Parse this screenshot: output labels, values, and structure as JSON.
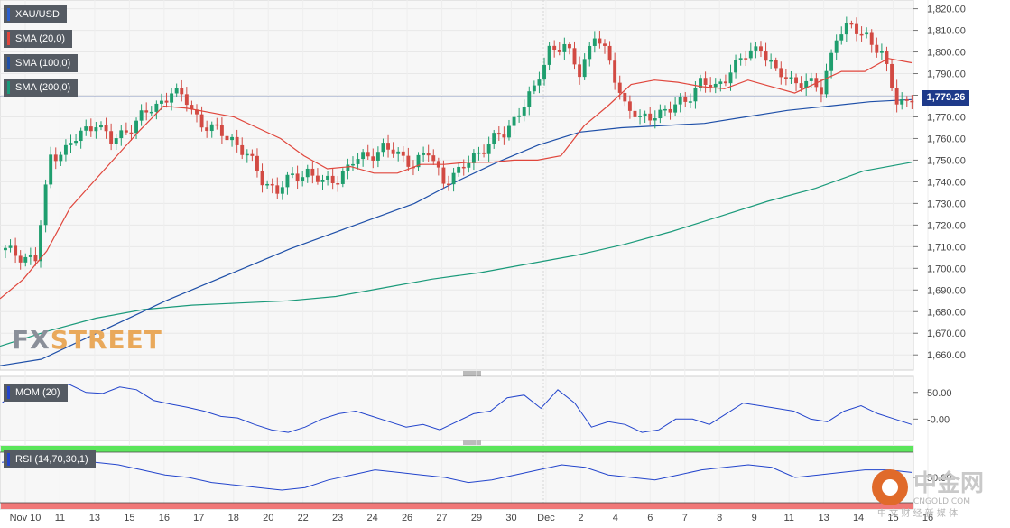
{
  "legend": {
    "symbol": "XAU/USD",
    "sma20": "SMA (20,0)",
    "sma100": "SMA (100,0)",
    "sma200": "SMA (200,0)",
    "mom": "MOM (20)",
    "rsi": "RSI (14,70,30,1)"
  },
  "colors": {
    "up": "#1f9e6e",
    "down": "#d24a43",
    "sma20": "#e0463c",
    "sma100": "#1e4fa8",
    "sma200": "#1a9a7a",
    "mom_line": "#2244cc",
    "rsi_line": "#2244cc",
    "rsi_over": "#5ce65c",
    "rsi_under": "#f07878",
    "price_line": "#1e3a8a"
  },
  "price_badge": "1,779.26",
  "watermark": {
    "brand_a": "FX",
    "brand_b": "STREET",
    "cn_brand": "中金网",
    "cn_url": "CNGOLD.COM",
    "cn_tag": "中 文 财 经 新 媒 体"
  },
  "chart_data": [
    {
      "type": "candlestick",
      "symbol": "XAU/USD",
      "y_axis_labels": [
        "1,820.00",
        "1,810.00",
        "1,800.00",
        "1,790.00",
        "1,780.00",
        "1,770.00",
        "1,760.00",
        "1,750.00",
        "1,740.00",
        "1,730.00",
        "1,720.00",
        "1,710.00",
        "1,700.00",
        "1,690.00",
        "1,680.00",
        "1,670.00",
        "1,660.00"
      ],
      "ylim": [
        1653,
        1824
      ],
      "current_price": 1779.26,
      "x_tick_labels": [
        "Nov 10",
        "11",
        "13",
        "15",
        "16",
        "17",
        "18",
        "20",
        "22",
        "23",
        "24",
        "26",
        "27",
        "29",
        "30",
        "Dec",
        "2",
        "4",
        "6",
        "7",
        "8",
        "9",
        "11",
        "13",
        "14",
        "15",
        "16"
      ],
      "close_path": [
        1708,
        1706,
        1704,
        1752,
        1755,
        1762,
        1768,
        1758,
        1764,
        1770,
        1775,
        1782,
        1777,
        1767,
        1763,
        1760,
        1752,
        1741,
        1736,
        1742,
        1745,
        1739,
        1742,
        1749,
        1752,
        1756,
        1752,
        1749,
        1753,
        1741,
        1744,
        1752,
        1758,
        1762,
        1773,
        1782,
        1802,
        1802,
        1791,
        1808,
        1795,
        1776,
        1768,
        1772,
        1773,
        1778,
        1786,
        1783,
        1792,
        1798,
        1803,
        1790,
        1787,
        1786,
        1782,
        1808,
        1811,
        1808,
        1798,
        1778,
        1777
      ],
      "series": [
        {
          "name": "SMA (20,0)",
          "values": [
            1686,
            1695,
            1708,
            1728,
            1740,
            1752,
            1764,
            1775,
            1774,
            1772,
            1770,
            1765,
            1760,
            1752,
            1746,
            1747,
            1744,
            1744,
            1748,
            1748,
            1749,
            1749,
            1750,
            1750,
            1752,
            1766,
            1775,
            1785,
            1787,
            1786,
            1784,
            1783,
            1787,
            1784,
            1781,
            1786,
            1791,
            1791,
            1797,
            1795
          ]
        },
        {
          "name": "SMA (100,0)",
          "values": [
            1655,
            1658,
            1667,
            1676,
            1685,
            1693,
            1701,
            1709,
            1716,
            1723,
            1730,
            1740,
            1749,
            1757,
            1763,
            1765,
            1766,
            1767,
            1770,
            1773,
            1775,
            1777,
            1778
          ]
        },
        {
          "name": "SMA (200,0)",
          "values": [
            1664,
            1671,
            1677,
            1681,
            1683,
            1684,
            1685,
            1687,
            1691,
            1695,
            1698,
            1702,
            1706,
            1711,
            1717,
            1724,
            1731,
            1737,
            1745,
            1749
          ]
        }
      ]
    },
    {
      "type": "line",
      "name": "MOM (20)",
      "y_axis_labels": [
        "50.00",
        "-0.00"
      ],
      "ylim": [
        -40,
        80
      ],
      "values": [
        30,
        55,
        55,
        62,
        65,
        50,
        48,
        60,
        55,
        35,
        28,
        22,
        15,
        5,
        2,
        -10,
        -20,
        -25,
        -15,
        0,
        10,
        15,
        5,
        -5,
        -15,
        -10,
        -20,
        -5,
        10,
        15,
        40,
        45,
        20,
        55,
        30,
        -15,
        -5,
        -10,
        -25,
        -20,
        0,
        0,
        -10,
        10,
        30,
        25,
        20,
        15,
        0,
        -5,
        15,
        25,
        10,
        0,
        -10
      ]
    },
    {
      "type": "line",
      "name": "RSI (14,70,30,1)",
      "y_axis_labels": [
        "50.00"
      ],
      "ylim": [
        25,
        75
      ],
      "levels": [
        70,
        30
      ],
      "values": [
        62,
        64,
        66,
        64,
        62,
        60,
        56,
        52,
        50,
        46,
        44,
        42,
        40,
        42,
        48,
        52,
        56,
        54,
        52,
        50,
        46,
        48,
        52,
        56,
        60,
        58,
        52,
        50,
        48,
        52,
        56,
        58,
        60,
        58,
        50,
        52,
        54,
        56,
        56,
        54
      ]
    }
  ]
}
